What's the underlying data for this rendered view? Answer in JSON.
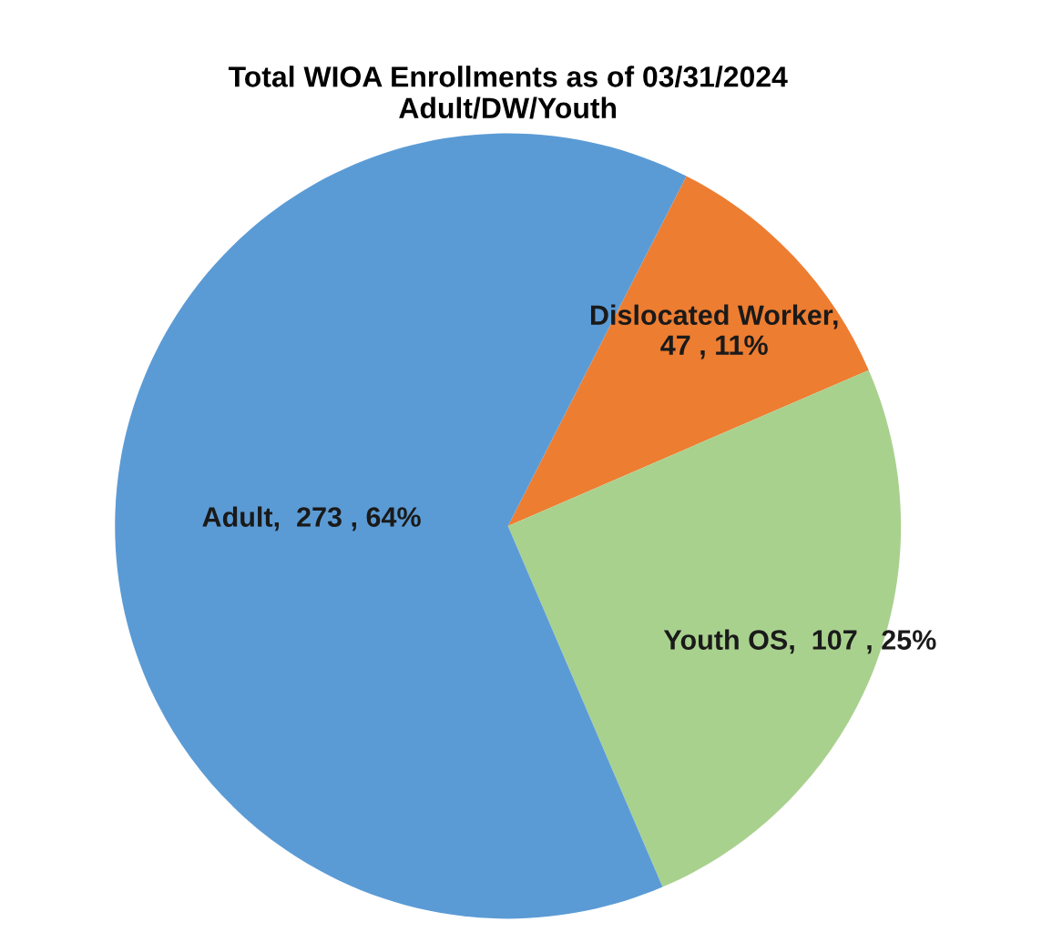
{
  "chart_data": {
    "type": "pie",
    "title": "Total WIOA Enrollments as of 03/31/2024\nAdult/DW/Youth",
    "categories": [
      "Dislocated Worker",
      "Youth OS",
      "Adult"
    ],
    "values": [
      47,
      107,
      273
    ],
    "colors": [
      "#ed7d31",
      "#a9d18e",
      "#5b9bd5"
    ],
    "value_labels": [
      ",\n47 , 11%",
      ",  107 , 25%",
      ",  273 , 64%"
    ]
  }
}
